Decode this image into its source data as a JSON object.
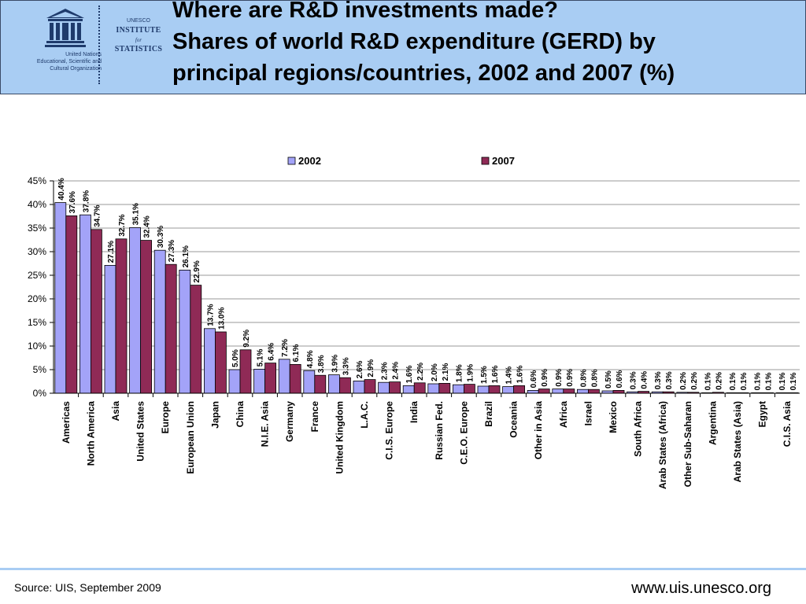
{
  "header": {
    "logo_alt": "UNESCO",
    "org_lines": [
      "United Nations",
      "Educational, Scientific and",
      "Cultural Organization"
    ],
    "uis_lines": [
      "UNESCO",
      "INSTITUTE",
      "for",
      "STATISTICS"
    ],
    "title_lines": [
      "Where are R&D investments made?",
      "Shares of world R&D expenditure (GERD) by",
      "principal regions/countries, 2002 and 2007 (%)"
    ]
  },
  "footer": {
    "source": "Source: UIS, September 2009",
    "url": "www.uis.unesco.org"
  },
  "colors": {
    "header_bg": "#a9cdf3",
    "series_2002": "#a3a3f8",
    "series_2007": "#8f2a56"
  },
  "chart_data": {
    "type": "bar",
    "categories": [
      "Americas",
      "North America",
      "Asia",
      "United States",
      "Europe",
      "European Union",
      "Japan",
      "China",
      "N.I.E. Asia",
      "Germany",
      "France",
      "United Kingdom",
      "L.A.C.",
      "C.I.S. Europe",
      "India",
      "Russian Fed.",
      "C.E.O. Europe",
      "Brazil",
      "Oceania",
      "Other in Asia",
      "Africa",
      "Israel",
      "Mexico",
      "South Africa",
      "Arab States (Africa)",
      "Other Sub-Saharan",
      "Argentina",
      "Arab States (Asia)",
      "Egypt",
      "C.I.S. Asia"
    ],
    "series": [
      {
        "name": "2002",
        "values": [
          40.4,
          37.8,
          27.1,
          35.1,
          30.3,
          26.1,
          13.7,
          5.0,
          5.1,
          7.2,
          4.8,
          3.9,
          2.6,
          2.3,
          1.6,
          2.0,
          1.8,
          1.5,
          1.4,
          0.6,
          0.9,
          0.8,
          0.5,
          0.3,
          0.3,
          0.2,
          0.1,
          0.1,
          0.1,
          0.1
        ]
      },
      {
        "name": "2007",
        "values": [
          37.6,
          34.7,
          32.7,
          32.4,
          27.3,
          22.9,
          13.0,
          9.2,
          6.4,
          6.1,
          3.8,
          3.3,
          2.9,
          2.4,
          2.2,
          2.1,
          1.9,
          1.6,
          1.6,
          0.9,
          0.9,
          0.8,
          0.6,
          0.4,
          0.3,
          0.2,
          0.2,
          0.1,
          0.1,
          0.1
        ]
      }
    ],
    "value_labels_2002": [
      "40.4%",
      "37.8%",
      "27.1%",
      "35.1%",
      "30.3%",
      "26.1%",
      "13.7%",
      "5.0%",
      "5.1%",
      "7.2%",
      "4.8%",
      "3.9%",
      "2.6%",
      "2.3%",
      "1.6%",
      "2.0%",
      "1.8%",
      "1.5%",
      "1.4%",
      "0.6%",
      "0.9%",
      "0.8%",
      "0.5%",
      "0.3%",
      "0.3%",
      "0.2%",
      "0.1%",
      "0.1%",
      "0.1%",
      "0.1%"
    ],
    "value_labels_2007": [
      "37.6%",
      "34.7%",
      "32.7%",
      "32.4%",
      "27.3%",
      "22.9%",
      "13.0%",
      "9.2%",
      "6.4%",
      "6.1%",
      "3.8%",
      "3.3%",
      "2.9%",
      "2.4%",
      "2.2%",
      "2.1%",
      "1.9%",
      "1.6%",
      "1.6%",
      "0.9%",
      "0.9%",
      "0.8%",
      "0.6%",
      "0.4%",
      "0.3%",
      "0.2%",
      "0.2%",
      "0.1%",
      "0.1%",
      "0.1%"
    ],
    "y_ticks": [
      "0%",
      "5%",
      "10%",
      "15%",
      "20%",
      "25%",
      "30%",
      "35%",
      "40%",
      "45%"
    ],
    "ylim": [
      0,
      45
    ],
    "y_step": 5,
    "grid": true,
    "legend_position": "top-center"
  }
}
